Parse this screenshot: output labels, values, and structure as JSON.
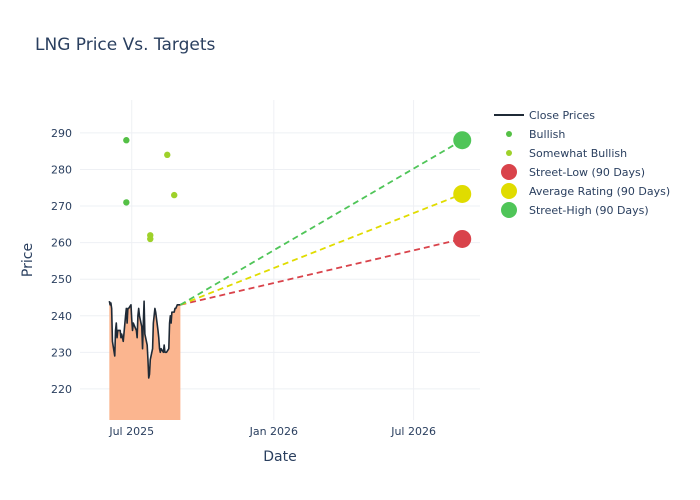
{
  "chart_data": {
    "type": "line",
    "title": "LNG Price Vs. Targets",
    "xlabel": "Date",
    "ylabel": "Price",
    "x_ticks": [
      "Jul 2025",
      "Jan 2026",
      "Jul 2026"
    ],
    "x_tick_dates": [
      "2025-07-01",
      "2026-01-01",
      "2026-07-01"
    ],
    "xlim": [
      "2025-04-25",
      "2026-09-25"
    ],
    "y_ticks": [
      220,
      230,
      240,
      250,
      260,
      270,
      280,
      290
    ],
    "ylim": [
      211.5,
      299
    ],
    "grid": true,
    "legend_position": "right",
    "colors": {
      "close": "#1f2a36",
      "area": "#fbb58f",
      "bullish": "#54c045",
      "somewhat_bullish": "#9ed12a",
      "street_low": "#d9434b",
      "average": "#e0dc00",
      "street_high": "#4fc558"
    },
    "series": [
      {
        "name": "Close Prices",
        "x": [
          "2025-06-02",
          "2025-06-03",
          "2025-06-04",
          "2025-06-05",
          "2025-06-06",
          "2025-06-09",
          "2025-06-10",
          "2025-06-11",
          "2025-06-12",
          "2025-06-13",
          "2025-06-16",
          "2025-06-17",
          "2025-06-18",
          "2025-06-20",
          "2025-06-23",
          "2025-06-24",
          "2025-06-25",
          "2025-06-26",
          "2025-06-27",
          "2025-06-30",
          "2025-07-01",
          "2025-07-02",
          "2025-07-03",
          "2025-07-07",
          "2025-07-08",
          "2025-07-09",
          "2025-07-10",
          "2025-07-11",
          "2025-07-14",
          "2025-07-15",
          "2025-07-16",
          "2025-07-17",
          "2025-07-18",
          "2025-07-21",
          "2025-07-22",
          "2025-07-23",
          "2025-07-24",
          "2025-07-25",
          "2025-07-28",
          "2025-07-29",
          "2025-07-30",
          "2025-07-31",
          "2025-08-01",
          "2025-08-04",
          "2025-08-05",
          "2025-08-06",
          "2025-08-07",
          "2025-08-08",
          "2025-08-11",
          "2025-08-12",
          "2025-08-13",
          "2025-08-14",
          "2025-08-15",
          "2025-08-18",
          "2025-08-19",
          "2025-08-20",
          "2025-08-21",
          "2025-08-22",
          "2025-08-25",
          "2025-08-26",
          "2025-08-27",
          "2025-08-28",
          "2025-08-29",
          "2025-09-01",
          "2025-09-02"
        ],
        "y": [
          244,
          243,
          243.5,
          242,
          233,
          229,
          236,
          238,
          234,
          236,
          236,
          234,
          235,
          233,
          240,
          242,
          238,
          242,
          242,
          243,
          239,
          236,
          238,
          236,
          234,
          240,
          242,
          240,
          237,
          231,
          238,
          244,
          235,
          232,
          228,
          223,
          224,
          228,
          231,
          238,
          240,
          242,
          241,
          236,
          234,
          231,
          230,
          231,
          230,
          232,
          230,
          230,
          230,
          231,
          238,
          240,
          238,
          241,
          241,
          242,
          242,
          242.5,
          243,
          243,
          243
        ]
      },
      {
        "name": "Bullish",
        "x": [
          "2025-06-24",
          "2025-06-24"
        ],
        "y": [
          288,
          271
        ]
      },
      {
        "name": "Somewhat Bullish",
        "x": [
          "2025-07-25",
          "2025-07-25",
          "2025-08-16",
          "2025-08-25"
        ],
        "y": [
          262,
          261,
          284,
          273
        ]
      },
      {
        "name": "Street-Low (90 Days)",
        "x": [
          "2025-09-02",
          "2026-09-02"
        ],
        "y": [
          243,
          261
        ]
      },
      {
        "name": "Average Rating (90 Days)",
        "x": [
          "2025-09-02",
          "2026-09-02"
        ],
        "y": [
          243,
          273.3
        ]
      },
      {
        "name": "Street-High (90 Days)",
        "x": [
          "2025-09-02",
          "2026-09-02"
        ],
        "y": [
          243,
          288
        ]
      }
    ]
  }
}
